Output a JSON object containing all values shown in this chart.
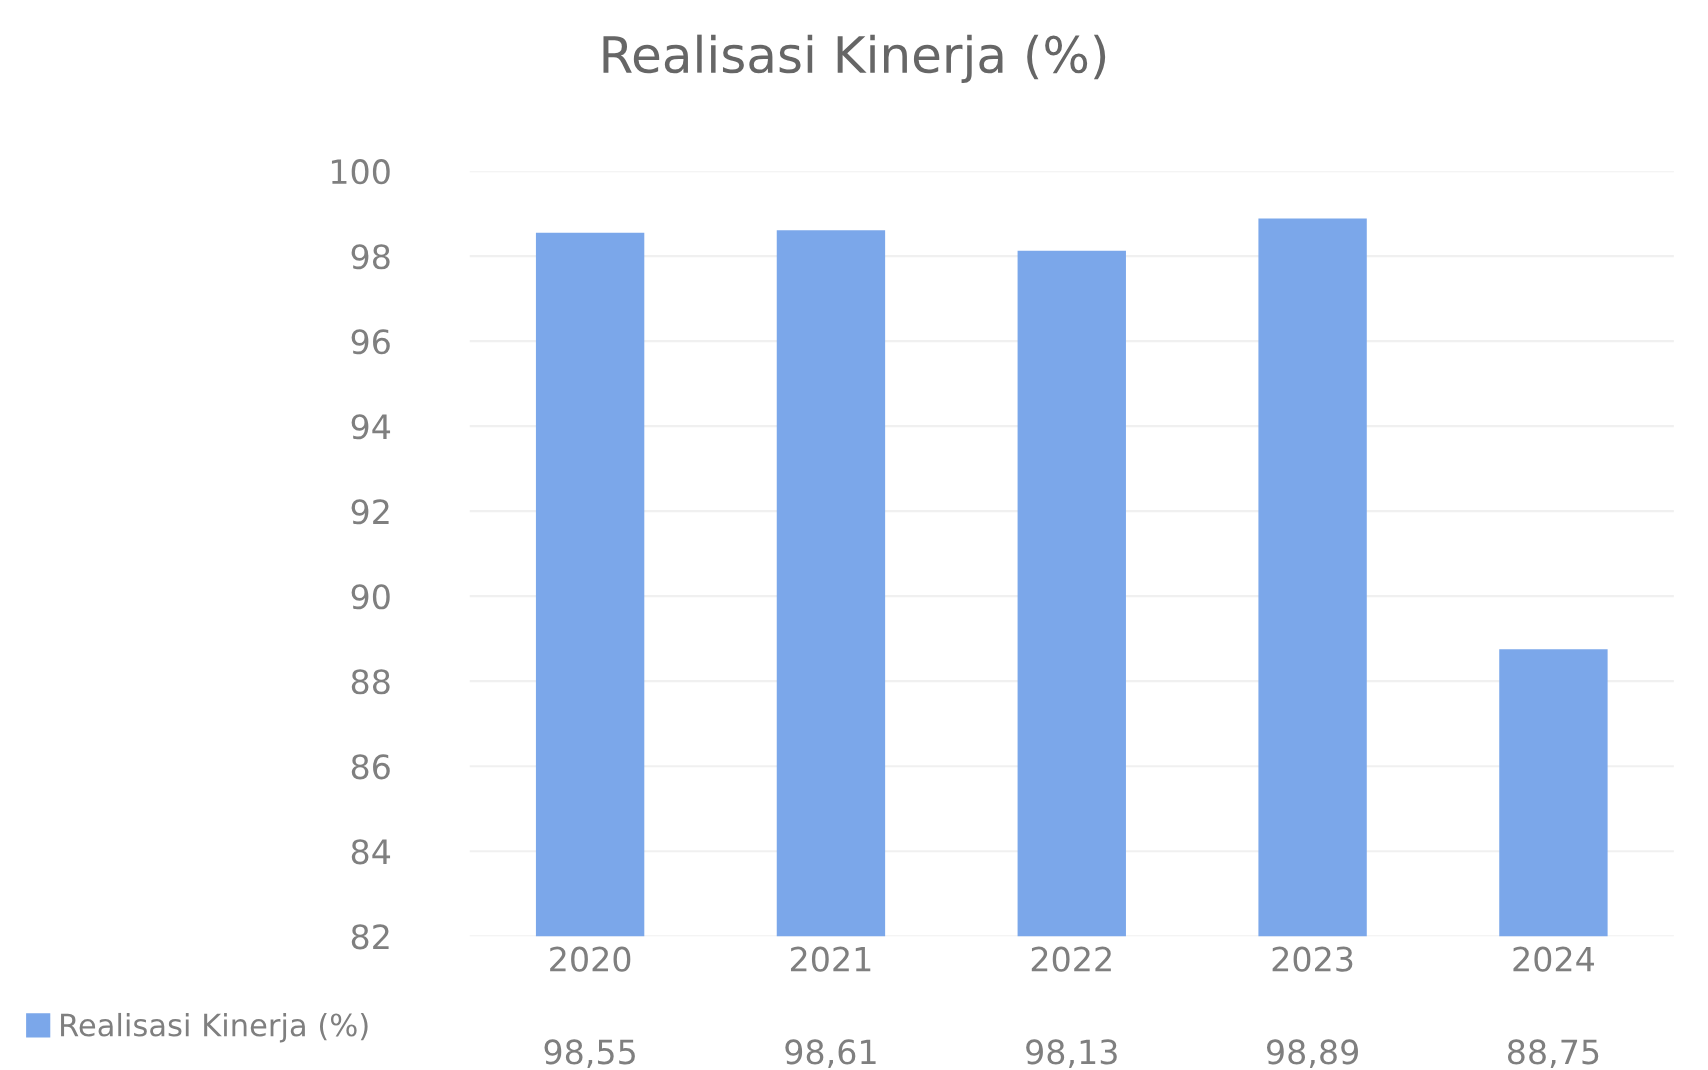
{
  "chart_data": {
    "type": "bar",
    "title": "Realisasi Kinerja (%)",
    "categories": [
      "2020",
      "2021",
      "2022",
      "2023",
      "2024"
    ],
    "series": [
      {
        "name": "Realisasi Kinerja (%)",
        "color": "#7ba7ea",
        "values": [
          98.55,
          98.61,
          98.13,
          98.89,
          88.75
        ],
        "value_labels": [
          "98,55",
          "98,61",
          "98,13",
          "98,89",
          "88,75"
        ]
      }
    ],
    "ylim": [
      82,
      100
    ],
    "yticks": [
      82,
      84,
      86,
      88,
      90,
      92,
      94,
      96,
      98,
      100
    ],
    "grid": "y",
    "legend": "bottom left"
  }
}
